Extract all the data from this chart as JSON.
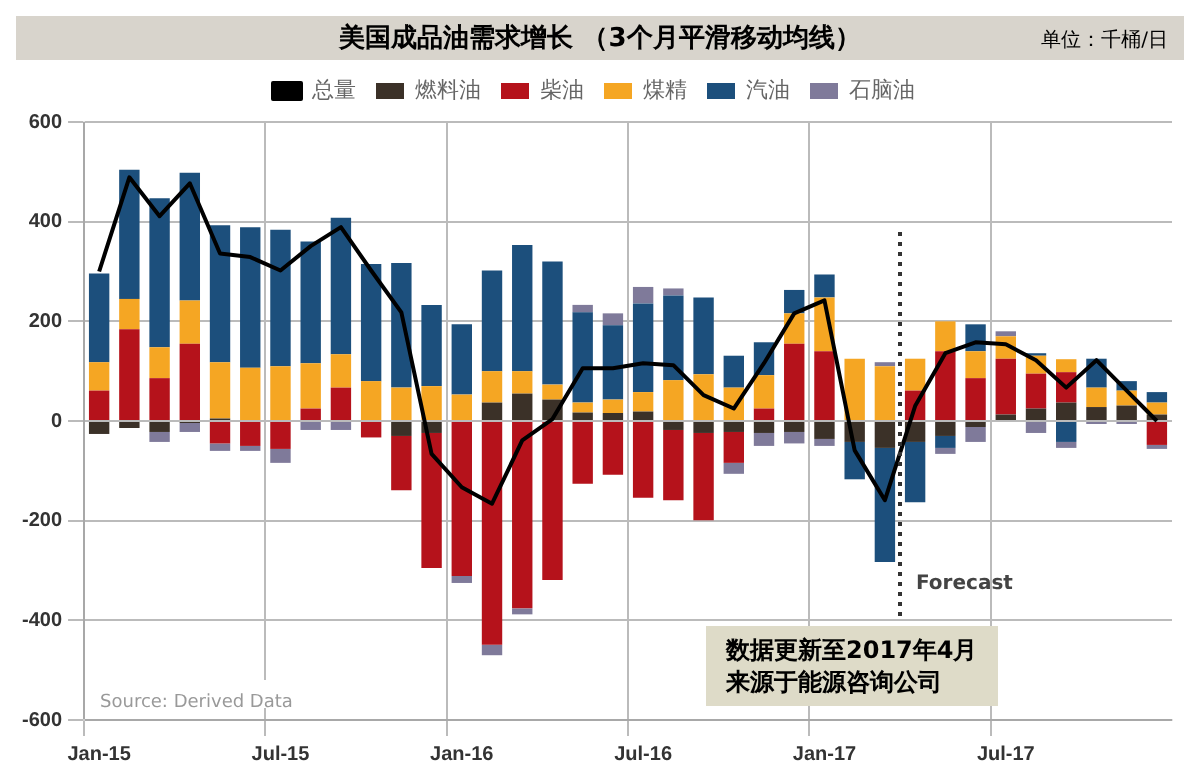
{
  "chart_data": {
    "type": "bar",
    "title": "美国成品油需求增长 （3个月平滑移动均线）",
    "subtitle": "单位：千桶/日",
    "categories": [
      "Jan-15",
      null,
      null,
      null,
      null,
      null,
      "Jul-15",
      null,
      null,
      null,
      null,
      null,
      "Jan-16",
      null,
      null,
      null,
      null,
      null,
      "Jul-16",
      null,
      null,
      null,
      null,
      null,
      "Jan-17",
      null,
      null,
      null,
      null,
      null,
      "Jul-17",
      null,
      null,
      null,
      null,
      null
    ],
    "series": [
      {
        "name": "燃料油",
        "color": "#3b3128",
        "values": [
          -26,
          -14,
          -22,
          -4,
          5,
          0,
          0,
          0,
          0,
          0,
          -30,
          -24,
          0,
          37,
          55,
          43,
          17,
          16,
          19,
          -18,
          -24,
          -22,
          -24,
          -22,
          -36,
          -42,
          -54,
          -42,
          -30,
          -12,
          13,
          25,
          37,
          28,
          31,
          13
        ]
      },
      {
        "name": "柴油",
        "color": "#b5121b",
        "values": [
          61,
          184,
          86,
          155,
          -45,
          -50,
          -56,
          25,
          67,
          -33,
          -109,
          -271,
          -311,
          -449,
          -376,
          -319,
          -126,
          -108,
          -154,
          -141,
          -175,
          -62,
          25,
          155,
          140,
          0,
          0,
          61,
          140,
          86,
          112,
          70,
          61,
          0,
          0,
          -48
        ]
      },
      {
        "name": "煤精",
        "color": "#f5a623",
        "values": [
          57,
          61,
          62,
          87,
          113,
          107,
          110,
          91,
          67,
          80,
          67,
          70,
          53,
          63,
          45,
          30,
          20,
          27,
          39,
          82,
          94,
          67,
          67,
          61,
          108,
          125,
          110,
          64,
          60,
          54,
          45,
          36,
          26,
          39,
          30,
          24
        ]
      },
      {
        "name": "汽油",
        "color": "#1c4f7c",
        "values": [
          178,
          259,
          299,
          256,
          275,
          282,
          274,
          244,
          274,
          235,
          250,
          163,
          141,
          202,
          253,
          247,
          181,
          149,
          178,
          170,
          154,
          64,
          66,
          47,
          46,
          -75,
          -229,
          -121,
          -24,
          54,
          0,
          5,
          -42,
          58,
          19,
          21
        ]
      },
      {
        "name": "石脑油",
        "color": "#7f7a9a",
        "values": [
          0,
          0,
          -20,
          -18,
          -15,
          -10,
          -28,
          -18,
          -18,
          0,
          0,
          0,
          -14,
          -21,
          -12,
          0,
          15,
          24,
          33,
          14,
          0,
          -22,
          -26,
          -23,
          -14,
          0,
          8,
          0,
          -12,
          -30,
          10,
          -24,
          -12,
          -6,
          -6,
          -8
        ]
      },
      {
        "name": "总量",
        "type": "line",
        "color": "#000000",
        "values": [
          300,
          489,
          411,
          477,
          336,
          329,
          302,
          351,
          389,
          302,
          218,
          -66,
          -133,
          -166,
          -39,
          4,
          106,
          106,
          116,
          112,
          52,
          25,
          116,
          216,
          242,
          -59,
          -159,
          30,
          136,
          158,
          154,
          122,
          67,
          122,
          61,
          0
        ]
      }
    ],
    "stacked": true,
    "ylim": [
      -600,
      600
    ],
    "yticks": [
      -600,
      -400,
      -200,
      0,
      200,
      400,
      600
    ],
    "grid": true,
    "legend": "top",
    "annotations": [
      "Source: Derived Data",
      "Forecast",
      "数据更新至2017年4月",
      "来源于能源咨询公司"
    ]
  }
}
